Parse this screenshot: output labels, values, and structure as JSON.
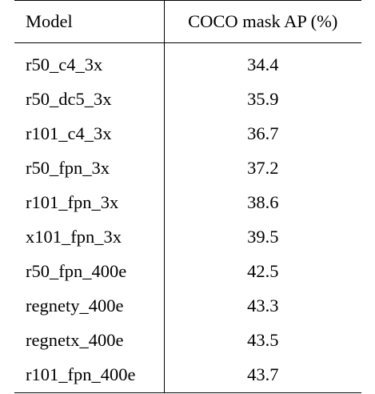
{
  "chart_data": {
    "type": "table",
    "columns": [
      "Model",
      "COCO mask AP (%)"
    ],
    "rows": [
      {
        "model": "r50_c4_3x",
        "ap": "34.4"
      },
      {
        "model": "r50_dc5_3x",
        "ap": "35.9"
      },
      {
        "model": "r101_c4_3x",
        "ap": "36.7"
      },
      {
        "model": "r50_fpn_3x",
        "ap": "37.2"
      },
      {
        "model": "r101_fpn_3x",
        "ap": "38.6"
      },
      {
        "model": "x101_fpn_3x",
        "ap": "39.5"
      },
      {
        "model": "r50_fpn_400e",
        "ap": "42.5"
      },
      {
        "model": "regnety_400e",
        "ap": "43.3"
      },
      {
        "model": "regnetx_400e",
        "ap": "43.5"
      },
      {
        "model": "r101_fpn_400e",
        "ap": "43.7"
      }
    ]
  }
}
